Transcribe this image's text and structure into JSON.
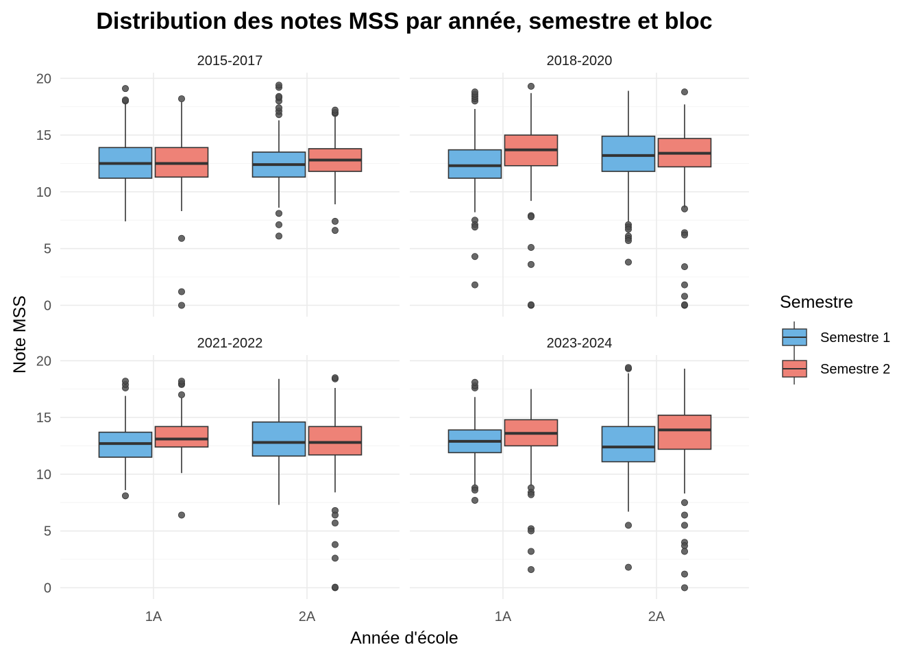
{
  "chart_data": {
    "type": "boxplot",
    "title": "Distribution des notes MSS par année, semestre et bloc",
    "xlabel": "Année d'école",
    "ylabel": "Note MSS",
    "ylim": [
      -1,
      20.5
    ],
    "y_ticks": [
      "0",
      "5",
      "10",
      "15",
      "20"
    ],
    "y_tick_values": [
      0,
      5,
      10,
      15,
      20
    ],
    "categories": [
      "1A",
      "2A"
    ],
    "legend": {
      "title": "Semestre",
      "position": "right",
      "entries": [
        {
          "name": "Semestre 1",
          "color": "#6CB3E3"
        },
        {
          "name": "Semestre 2",
          "color": "#EE8277"
        }
      ]
    },
    "grid": true,
    "panels": [
      {
        "label": "2015-2017",
        "boxes": [
          {
            "category": "1A",
            "series": "Semestre 1",
            "low": 7.4,
            "q1": 11.2,
            "median": 12.5,
            "q3": 13.9,
            "high": 17.9,
            "outliers": [
              18.0,
              18.1,
              19.1
            ]
          },
          {
            "category": "1A",
            "series": "Semestre 2",
            "low": 8.3,
            "q1": 11.3,
            "median": 12.5,
            "q3": 13.9,
            "high": 17.9,
            "outliers": [
              18.2,
              5.9,
              1.2,
              0.0
            ]
          },
          {
            "category": "2A",
            "series": "Semestre 1",
            "low": 8.6,
            "q1": 11.3,
            "median": 12.4,
            "q3": 13.5,
            "high": 16.3,
            "outliers": [
              16.8,
              17.1,
              17.4,
              18.0,
              18.3,
              18.4,
              19.2,
              19.4,
              8.1,
              7.1,
              6.1
            ]
          },
          {
            "category": "2A",
            "series": "Semestre 2",
            "low": 8.9,
            "q1": 11.8,
            "median": 12.8,
            "q3": 13.8,
            "high": 16.7,
            "outliers": [
              16.9,
              17.0,
              17.2,
              7.4,
              6.6
            ]
          }
        ]
      },
      {
        "label": "2018-2020",
        "boxes": [
          {
            "category": "1A",
            "series": "Semestre 1",
            "low": 8.2,
            "q1": 11.2,
            "median": 12.3,
            "q3": 13.7,
            "high": 17.3,
            "outliers": [
              18.0,
              18.2,
              18.4,
              18.6,
              18.8,
              7.5,
              7.1,
              6.9,
              4.3,
              1.8
            ]
          },
          {
            "category": "1A",
            "series": "Semestre 2",
            "low": 9.2,
            "q1": 12.3,
            "median": 13.7,
            "q3": 15.0,
            "high": 18.7,
            "outliers": [
              19.3,
              7.9,
              7.8,
              5.1,
              3.6,
              0.0,
              0.05
            ]
          },
          {
            "category": "2A",
            "series": "Semestre 1",
            "low": 7.4,
            "q1": 11.8,
            "median": 13.2,
            "q3": 14.9,
            "high": 18.9,
            "outliers": [
              7.1,
              6.9,
              6.7,
              6.1,
              5.9,
              5.7,
              3.8
            ]
          },
          {
            "category": "2A",
            "series": "Semestre 2",
            "low": 8.6,
            "q1": 12.2,
            "median": 13.4,
            "q3": 14.7,
            "high": 17.7,
            "outliers": [
              18.8,
              8.5,
              6.4,
              6.2,
              3.4,
              1.8,
              0.8,
              0.0,
              0.05
            ]
          }
        ]
      },
      {
        "label": "2021-2022",
        "boxes": [
          {
            "category": "1A",
            "series": "Semestre 1",
            "low": 8.6,
            "q1": 11.5,
            "median": 12.7,
            "q3": 13.7,
            "high": 16.9,
            "outliers": [
              17.6,
              17.9,
              18.2,
              8.1
            ]
          },
          {
            "category": "1A",
            "series": "Semestre 2",
            "low": 10.1,
            "q1": 12.4,
            "median": 13.1,
            "q3": 14.2,
            "high": 16.7,
            "outliers": [
              17.0,
              17.9,
              18.0,
              18.2,
              6.4
            ]
          },
          {
            "category": "2A",
            "series": "Semestre 1",
            "low": 7.3,
            "q1": 11.6,
            "median": 12.8,
            "q3": 14.6,
            "high": 18.4,
            "outliers": []
          },
          {
            "category": "2A",
            "series": "Semestre 2",
            "low": 8.4,
            "q1": 11.7,
            "median": 12.8,
            "q3": 14.2,
            "high": 17.6,
            "outliers": [
              18.4,
              18.5,
              6.8,
              6.4,
              5.7,
              3.8,
              2.6,
              0.0,
              0.05
            ]
          }
        ]
      },
      {
        "label": "2023-2024",
        "boxes": [
          {
            "category": "1A",
            "series": "Semestre 1",
            "low": 9.0,
            "q1": 11.9,
            "median": 12.9,
            "q3": 13.9,
            "high": 16.8,
            "outliers": [
              17.6,
              17.8,
              18.1,
              8.8,
              8.6,
              7.7
            ]
          },
          {
            "category": "1A",
            "series": "Semestre 2",
            "low": 9.0,
            "q1": 12.5,
            "median": 13.6,
            "q3": 14.8,
            "high": 17.5,
            "outliers": [
              8.8,
              8.4,
              8.2,
              5.2,
              5.0,
              3.2,
              1.6
            ]
          },
          {
            "category": "2A",
            "series": "Semestre 1",
            "low": 6.7,
            "q1": 11.1,
            "median": 12.4,
            "q3": 14.2,
            "high": 18.9,
            "outliers": [
              19.3,
              19.4,
              5.5,
              1.8
            ]
          },
          {
            "category": "2A",
            "series": "Semestre 2",
            "low": 8.3,
            "q1": 12.2,
            "median": 13.9,
            "q3": 15.2,
            "high": 19.3,
            "outliers": [
              7.5,
              6.4,
              5.5,
              4.0,
              3.7,
              3.2,
              1.2,
              0.0
            ]
          }
        ]
      }
    ]
  },
  "colors": {
    "semestre_1": "#6CB3E3",
    "semestre_2": "#EE8277",
    "outline": "#333333",
    "median": "#333333",
    "outlier": "#4d4d4d"
  }
}
